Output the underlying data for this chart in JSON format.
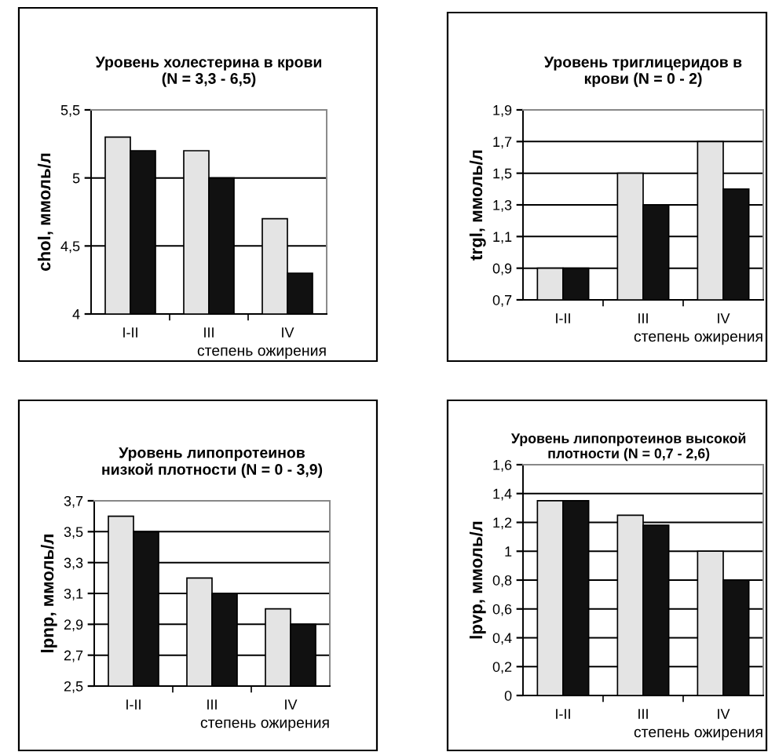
{
  "chart_data": [
    {
      "type": "bar",
      "title": "Уровень холестерина в крови\n(N = 3,3 - 6,5)",
      "ylabel": "chol, ммоль/л",
      "xlabel": "степень ожирения",
      "categories": [
        "I-II",
        "III",
        "IV"
      ],
      "series": [
        {
          "color": "#e4e4e4",
          "values": [
            5.3,
            5.2,
            4.7
          ]
        },
        {
          "color": "#111111",
          "values": [
            5.2,
            5.0,
            4.3
          ]
        }
      ],
      "ylim": [
        4,
        5.5
      ],
      "yticks": [
        {
          "value": 4,
          "label": "4"
        },
        {
          "value": 4.5,
          "label": "4,5"
        },
        {
          "value": 5,
          "label": "5"
        },
        {
          "value": 5.5,
          "label": "5,5"
        }
      ],
      "grid": "y"
    },
    {
      "type": "bar",
      "title": "Уровень триглицеридов в\nкрови (N = 0 - 2)",
      "ylabel": "trgl, ммоль/л",
      "xlabel": "степень ожирения",
      "categories": [
        "I-II",
        "III",
        "IV"
      ],
      "series": [
        {
          "color": "#e4e4e4",
          "values": [
            0.9,
            1.5,
            1.7
          ]
        },
        {
          "color": "#111111",
          "values": [
            0.9,
            1.3,
            1.4
          ]
        }
      ],
      "ylim": [
        0.7,
        1.9
      ],
      "yticks": [
        {
          "value": 0.7,
          "label": "0,7"
        },
        {
          "value": 0.9,
          "label": "0,9"
        },
        {
          "value": 1.1,
          "label": "1,1"
        },
        {
          "value": 1.3,
          "label": "1,3"
        },
        {
          "value": 1.5,
          "label": "1,5"
        },
        {
          "value": 1.7,
          "label": "1,7"
        },
        {
          "value": 1.9,
          "label": "1,9"
        }
      ],
      "grid": "y"
    },
    {
      "type": "bar",
      "title": "Уровень липопротеинов\nнизкой плотности (N = 0 - 3,9)",
      "ylabel": "lpnp, ммоль/л",
      "xlabel": "степень ожирения",
      "categories": [
        "I-II",
        "III",
        "IV"
      ],
      "series": [
        {
          "color": "#e4e4e4",
          "values": [
            3.6,
            3.2,
            3.0
          ]
        },
        {
          "color": "#111111",
          "values": [
            3.5,
            3.1,
            2.9
          ]
        }
      ],
      "ylim": [
        2.5,
        3.7
      ],
      "yticks": [
        {
          "value": 2.5,
          "label": "2,5"
        },
        {
          "value": 2.7,
          "label": "2,7"
        },
        {
          "value": 2.9,
          "label": "2,9"
        },
        {
          "value": 3.1,
          "label": "3,1"
        },
        {
          "value": 3.3,
          "label": "3,3"
        },
        {
          "value": 3.5,
          "label": "3,5"
        },
        {
          "value": 3.7,
          "label": "3,7"
        }
      ],
      "grid": "y"
    },
    {
      "type": "bar",
      "title": "Уровень липопротеинов высокой\nплотности (N = 0,7 - 2,6)",
      "ylabel": "lpvp, ммоль/л",
      "xlabel": "степень ожирения",
      "categories": [
        "I-II",
        "III",
        "IV"
      ],
      "series": [
        {
          "color": "#e4e4e4",
          "values": [
            1.35,
            1.25,
            1.0
          ]
        },
        {
          "color": "#111111",
          "values": [
            1.35,
            1.18,
            0.8
          ]
        }
      ],
      "ylim": [
        0,
        1.6
      ],
      "yticks": [
        {
          "value": 0,
          "label": "0"
        },
        {
          "value": 0.2,
          "label": "0,2"
        },
        {
          "value": 0.4,
          "label": "0,4"
        },
        {
          "value": 0.6,
          "label": "0,6"
        },
        {
          "value": 0.8,
          "label": "0,8"
        },
        {
          "value": 1,
          "label": "1"
        },
        {
          "value": 1.2,
          "label": "1,2"
        },
        {
          "value": 1.4,
          "label": "1,4"
        },
        {
          "value": 1.6,
          "label": "1,6"
        }
      ],
      "grid": "y"
    }
  ]
}
